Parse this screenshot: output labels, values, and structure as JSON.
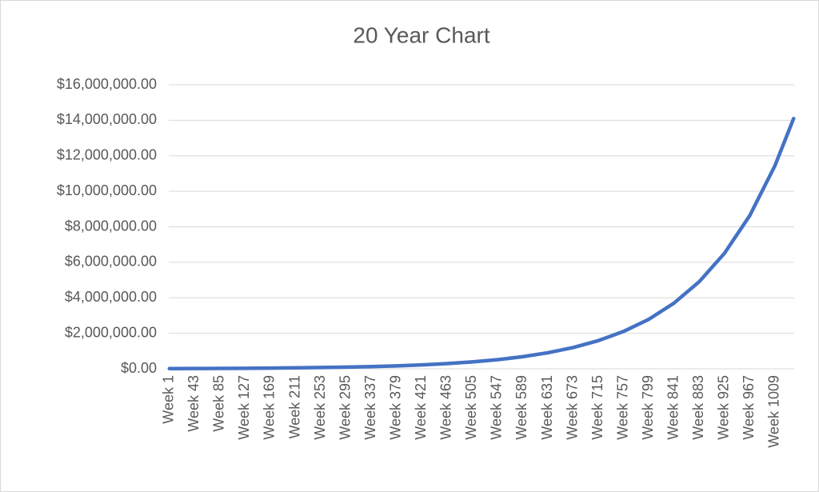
{
  "chart_data": {
    "type": "line",
    "title": "20 Year Chart",
    "x": [
      1,
      43,
      85,
      127,
      169,
      211,
      253,
      295,
      337,
      379,
      421,
      463,
      505,
      547,
      589,
      631,
      673,
      715,
      757,
      799,
      841,
      883,
      925,
      967,
      1009,
      1040
    ],
    "values": [
      13090,
      17350,
      23000,
      30540,
      40500,
      53700,
      71200,
      94400,
      125200,
      166000,
      220100,
      292100,
      387300,
      513500,
      680600,
      903000,
      1197400,
      1587700,
      2105000,
      2790000,
      3703000,
      4910000,
      6510000,
      8633000,
      11449000,
      14100000
    ],
    "color": "#4472c4",
    "xlim": [
      0,
      1041
    ],
    "xticks": [
      {
        "value": 1,
        "label": "Week 1"
      },
      {
        "value": 43,
        "label": "Week 43"
      },
      {
        "value": 85,
        "label": "Week 85"
      },
      {
        "value": 127,
        "label": "Week 127"
      },
      {
        "value": 169,
        "label": "Week 169"
      },
      {
        "value": 211,
        "label": "Week 211"
      },
      {
        "value": 253,
        "label": "Week 253"
      },
      {
        "value": 295,
        "label": "Week 295"
      },
      {
        "value": 337,
        "label": "Week 337"
      },
      {
        "value": 379,
        "label": "Week 379"
      },
      {
        "value": 421,
        "label": "Week 421"
      },
      {
        "value": 463,
        "label": "Week 463"
      },
      {
        "value": 505,
        "label": "Week 505"
      },
      {
        "value": 547,
        "label": "Week 547"
      },
      {
        "value": 589,
        "label": "Week 589"
      },
      {
        "value": 631,
        "label": "Week 631"
      },
      {
        "value": 673,
        "label": "Week 673"
      },
      {
        "value": 715,
        "label": "Week 715"
      },
      {
        "value": 757,
        "label": "Week 757"
      },
      {
        "value": 799,
        "label": "Week 799"
      },
      {
        "value": 841,
        "label": "Week 841"
      },
      {
        "value": 883,
        "label": "Week 883"
      },
      {
        "value": 925,
        "label": "Week 925"
      },
      {
        "value": 967,
        "label": "Week 967"
      },
      {
        "value": 1009,
        "label": "Week 1009"
      }
    ],
    "ylim": [
      0,
      16000000
    ],
    "yticks": [
      {
        "value": 0,
        "label": "$0.00"
      },
      {
        "value": 2000000,
        "label": "$2,000,000.00"
      },
      {
        "value": 4000000,
        "label": "$4,000,000.00"
      },
      {
        "value": 6000000,
        "label": "$6,000,000.00"
      },
      {
        "value": 8000000,
        "label": "$8,000,000.00"
      },
      {
        "value": 10000000,
        "label": "$10,000,000.00"
      },
      {
        "value": 12000000,
        "label": "$12,000,000.00"
      },
      {
        "value": 14000000,
        "label": "$14,000,000.00"
      },
      {
        "value": 16000000,
        "label": "$16,000,000.00"
      }
    ],
    "grid": true
  }
}
